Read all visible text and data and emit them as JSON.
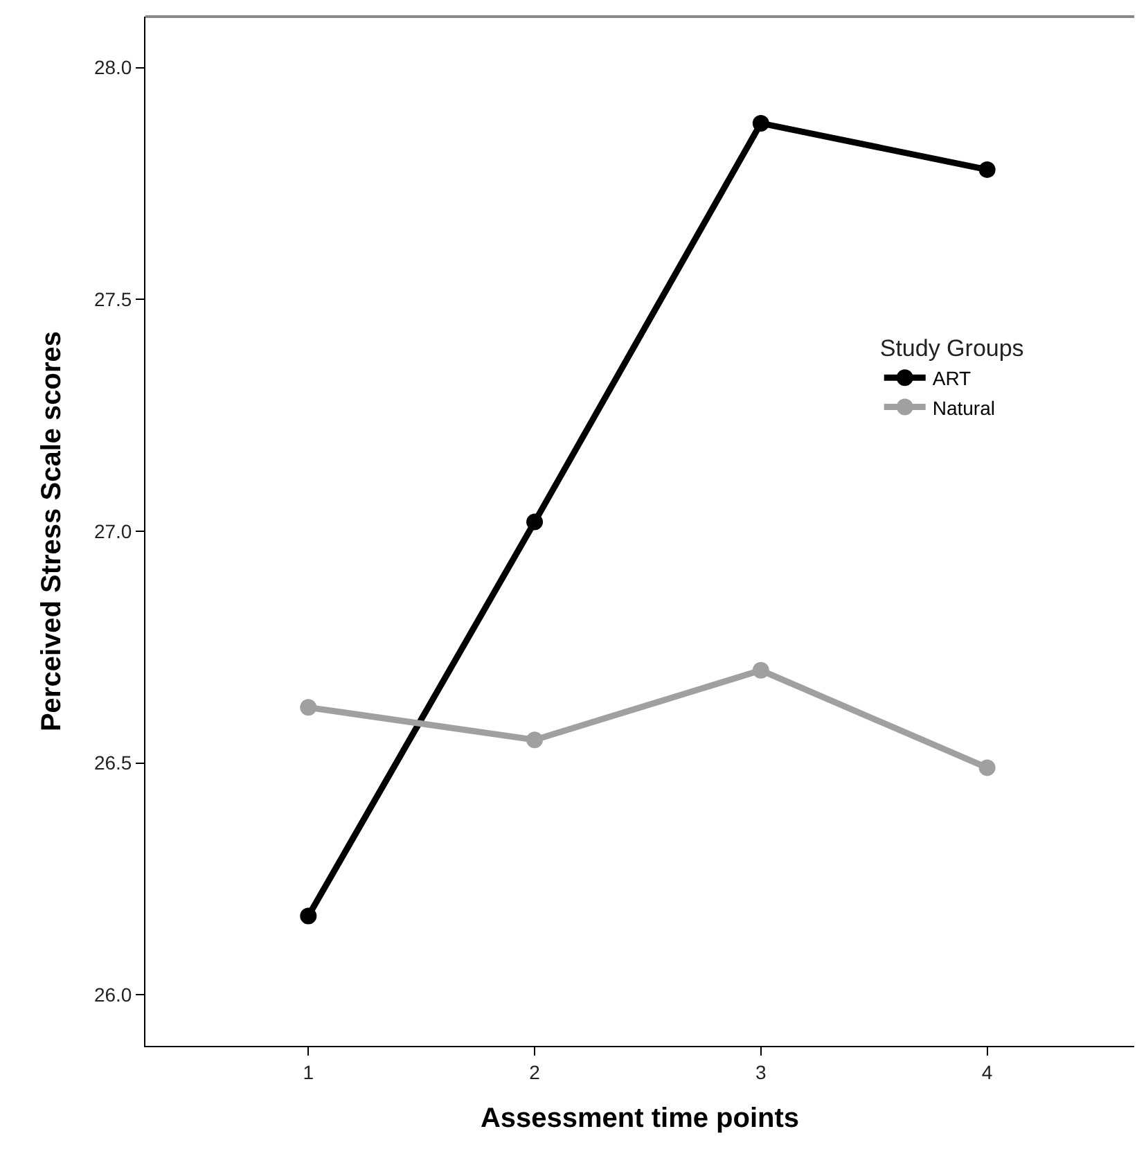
{
  "chart_data": {
    "type": "line",
    "xlabel": "Assessment time points",
    "ylabel": "Perceived Stress Scale scores",
    "legend_title": "Study Groups",
    "legend": "right",
    "marker": "circle",
    "line_style": "solid",
    "x": [
      1,
      2,
      3,
      4
    ],
    "xlim": [
      0.28,
      4.65
    ],
    "xticks": [
      1,
      2,
      3,
      4
    ],
    "ylim": [
      25.89,
      28.11
    ],
    "yticks": [
      {
        "value": 26.0,
        "label": "26.0"
      },
      {
        "value": 26.5,
        "label": "26.5"
      },
      {
        "value": 27.0,
        "label": "27.0"
      },
      {
        "value": 27.5,
        "label": "27.5"
      },
      {
        "value": 28.0,
        "label": "28.0"
      }
    ],
    "series": [
      {
        "name": "ART",
        "color": "#000000",
        "values": [
          26.17,
          27.02,
          27.88,
          27.78
        ]
      },
      {
        "name": "Natural",
        "color": "#a0a0a0",
        "values": [
          26.62,
          26.55,
          26.7,
          26.49
        ]
      }
    ]
  }
}
